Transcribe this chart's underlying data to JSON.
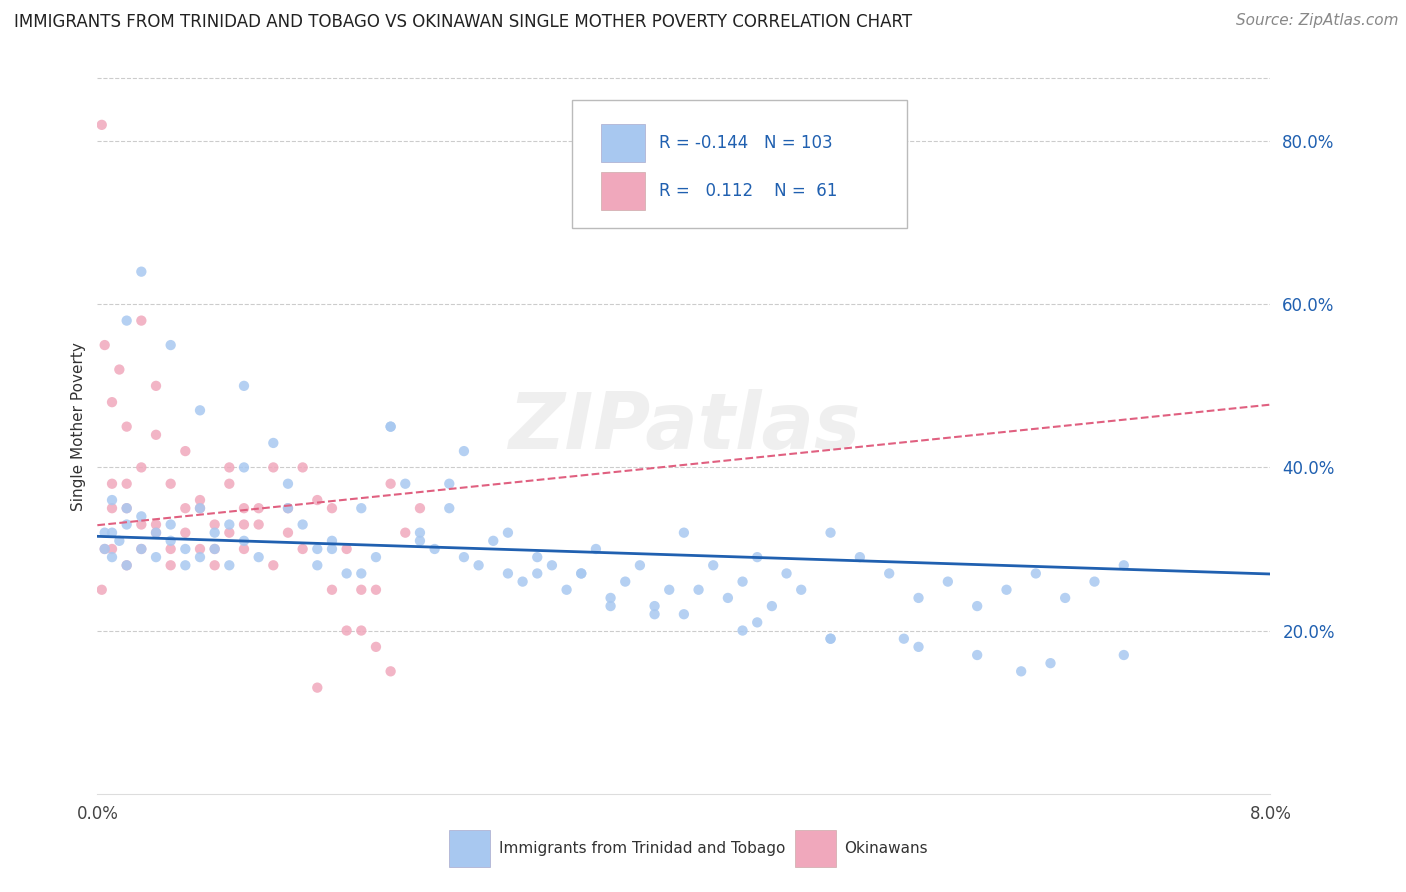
{
  "title": "IMMIGRANTS FROM TRINIDAD AND TOBAGO VS OKINAWAN SINGLE MOTHER POVERTY CORRELATION CHART",
  "source": "Source: ZipAtlas.com",
  "ylabel": "Single Mother Poverty",
  "ylabel_right_ticks": [
    "20.0%",
    "40.0%",
    "60.0%",
    "80.0%"
  ],
  "ylabel_right_vals": [
    0.2,
    0.4,
    0.6,
    0.8
  ],
  "x_min": 0.0,
  "x_max": 0.08,
  "y_min": 0.0,
  "y_max": 0.9,
  "legend_R1": "-0.144",
  "legend_N1": "103",
  "legend_R2": "0.112",
  "legend_N2": "61",
  "blue_color": "#A8C8F0",
  "pink_color": "#F0A8BC",
  "blue_line_color": "#2060B0",
  "pink_line_color": "#E06080",
  "grid_color": "#CCCCCC",
  "watermark": "ZIPatlas",
  "watermark_color": "#CCCCCC",
  "title_fontsize": 12,
  "source_fontsize": 11,
  "blue_scatter_x": [
    0.0005,
    0.001,
    0.001,
    0.0015,
    0.002,
    0.002,
    0.002,
    0.003,
    0.003,
    0.004,
    0.004,
    0.005,
    0.005,
    0.006,
    0.006,
    0.007,
    0.007,
    0.008,
    0.008,
    0.009,
    0.009,
    0.01,
    0.01,
    0.011,
    0.012,
    0.013,
    0.014,
    0.015,
    0.016,
    0.017,
    0.018,
    0.019,
    0.02,
    0.021,
    0.022,
    0.023,
    0.024,
    0.025,
    0.026,
    0.027,
    0.028,
    0.029,
    0.03,
    0.031,
    0.032,
    0.033,
    0.034,
    0.035,
    0.036,
    0.037,
    0.038,
    0.039,
    0.04,
    0.041,
    0.042,
    0.043,
    0.044,
    0.045,
    0.046,
    0.047,
    0.048,
    0.05,
    0.052,
    0.054,
    0.056,
    0.058,
    0.06,
    0.062,
    0.064,
    0.066,
    0.068,
    0.07,
    0.0005,
    0.001,
    0.002,
    0.003,
    0.005,
    0.007,
    0.01,
    0.013,
    0.016,
    0.02,
    0.024,
    0.028,
    0.033,
    0.038,
    0.044,
    0.05,
    0.056,
    0.063,
    0.015,
    0.022,
    0.03,
    0.04,
    0.05,
    0.06,
    0.07,
    0.018,
    0.025,
    0.035,
    0.045,
    0.055,
    0.065
  ],
  "blue_scatter_y": [
    0.3,
    0.32,
    0.36,
    0.31,
    0.28,
    0.33,
    0.35,
    0.3,
    0.34,
    0.29,
    0.32,
    0.31,
    0.33,
    0.28,
    0.3,
    0.35,
    0.29,
    0.32,
    0.3,
    0.28,
    0.33,
    0.31,
    0.5,
    0.29,
    0.43,
    0.38,
    0.33,
    0.28,
    0.31,
    0.27,
    0.35,
    0.29,
    0.45,
    0.38,
    0.32,
    0.3,
    0.35,
    0.42,
    0.28,
    0.31,
    0.27,
    0.26,
    0.29,
    0.28,
    0.25,
    0.27,
    0.3,
    0.24,
    0.26,
    0.28,
    0.22,
    0.25,
    0.32,
    0.25,
    0.28,
    0.24,
    0.26,
    0.29,
    0.23,
    0.27,
    0.25,
    0.32,
    0.29,
    0.27,
    0.24,
    0.26,
    0.23,
    0.25,
    0.27,
    0.24,
    0.26,
    0.28,
    0.32,
    0.29,
    0.58,
    0.64,
    0.55,
    0.47,
    0.4,
    0.35,
    0.3,
    0.45,
    0.38,
    0.32,
    0.27,
    0.23,
    0.2,
    0.19,
    0.18,
    0.15,
    0.3,
    0.31,
    0.27,
    0.22,
    0.19,
    0.17,
    0.17,
    0.27,
    0.29,
    0.23,
    0.21,
    0.19,
    0.16
  ],
  "pink_scatter_x": [
    0.0003,
    0.0005,
    0.001,
    0.001,
    0.001,
    0.0015,
    0.002,
    0.002,
    0.002,
    0.003,
    0.003,
    0.003,
    0.004,
    0.004,
    0.004,
    0.005,
    0.005,
    0.006,
    0.006,
    0.007,
    0.007,
    0.008,
    0.008,
    0.009,
    0.009,
    0.01,
    0.01,
    0.011,
    0.012,
    0.013,
    0.014,
    0.015,
    0.016,
    0.017,
    0.018,
    0.019,
    0.02,
    0.021,
    0.022,
    0.0003,
    0.0005,
    0.001,
    0.002,
    0.003,
    0.004,
    0.005,
    0.006,
    0.007,
    0.008,
    0.009,
    0.01,
    0.011,
    0.012,
    0.013,
    0.014,
    0.015,
    0.016,
    0.017,
    0.018,
    0.019,
    0.02
  ],
  "pink_scatter_y": [
    0.82,
    0.55,
    0.48,
    0.38,
    0.3,
    0.52,
    0.45,
    0.35,
    0.28,
    0.4,
    0.33,
    0.58,
    0.32,
    0.44,
    0.5,
    0.38,
    0.3,
    0.42,
    0.35,
    0.36,
    0.3,
    0.33,
    0.28,
    0.4,
    0.32,
    0.35,
    0.3,
    0.33,
    0.28,
    0.32,
    0.4,
    0.36,
    0.35,
    0.3,
    0.2,
    0.25,
    0.38,
    0.32,
    0.35,
    0.25,
    0.3,
    0.35,
    0.38,
    0.3,
    0.33,
    0.28,
    0.32,
    0.35,
    0.3,
    0.38,
    0.33,
    0.35,
    0.4,
    0.35,
    0.3,
    0.13,
    0.25,
    0.2,
    0.25,
    0.18,
    0.15
  ]
}
